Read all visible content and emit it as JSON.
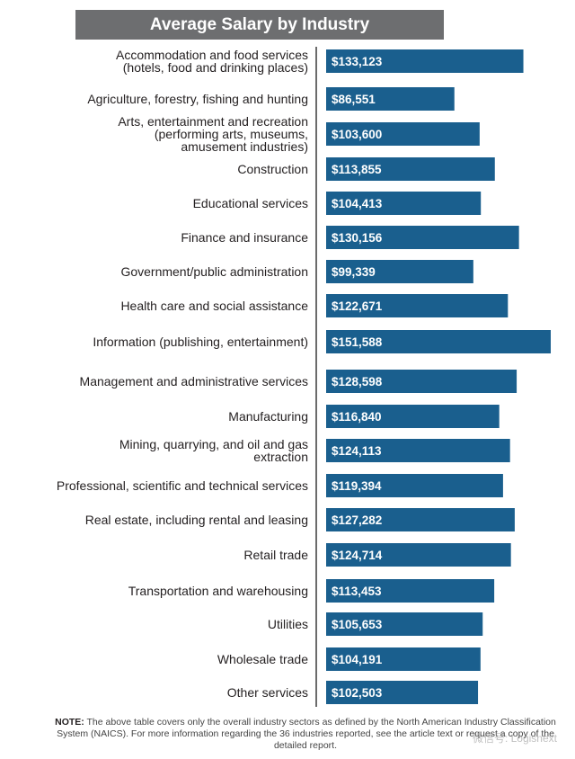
{
  "chart_data": {
    "type": "bar",
    "orientation": "horizontal",
    "title": "Average Salary by Industry",
    "categories": [
      [
        "Accommodation and food services",
        "(hotels, food and drinking places)"
      ],
      [
        "Agriculture, forestry, fishing and hunting"
      ],
      [
        "Arts, entertainment and recreation",
        "(performing arts, museums,",
        "amusement industries)"
      ],
      [
        "Construction"
      ],
      [
        "Educational services"
      ],
      [
        "Finance and insurance"
      ],
      [
        "Government/public administration"
      ],
      [
        "Health care and social assistance"
      ],
      [
        "Information (publishing, entertainment)"
      ],
      [
        "Management and administrative services"
      ],
      [
        "Manufacturing"
      ],
      [
        "Mining, quarrying, and oil and gas",
        "extraction"
      ],
      [
        "Professional, scientific and technical services"
      ],
      [
        "Real estate, including rental and leasing"
      ],
      [
        "Retail trade"
      ],
      [
        "Transportation and warehousing"
      ],
      [
        "Utilities"
      ],
      [
        "Wholesale trade"
      ],
      [
        "Other services"
      ]
    ],
    "values": [
      133123,
      86551,
      103600,
      113855,
      104413,
      130156,
      99339,
      122671,
      151588,
      128598,
      116840,
      124113,
      119394,
      127282,
      124714,
      113453,
      105653,
      104191,
      102503
    ],
    "value_labels": [
      "$133,123",
      "$86,551",
      "$103,600",
      "$113,855",
      "$104,413",
      "$130,156",
      "$99,339",
      "$122,671",
      "$151,588",
      "$128,598",
      "$116,840",
      "$124,113",
      "$119,394",
      "$127,282",
      "$124,714",
      "$113,453",
      "$105,653",
      "$104,191",
      "$102,503"
    ],
    "bar_color": "#1a5f8e",
    "axis_color": "#3a3a3a",
    "grid": false
  },
  "note": {
    "prefix": "NOTE:",
    "text": "The above table covers only the overall industry sectors as defined by the North American Industry Classification System (NAICS). For more information regarding the 36 industries reported, see the article text or request a copy of the detailed report."
  },
  "watermark": "微信号: Logisnext"
}
